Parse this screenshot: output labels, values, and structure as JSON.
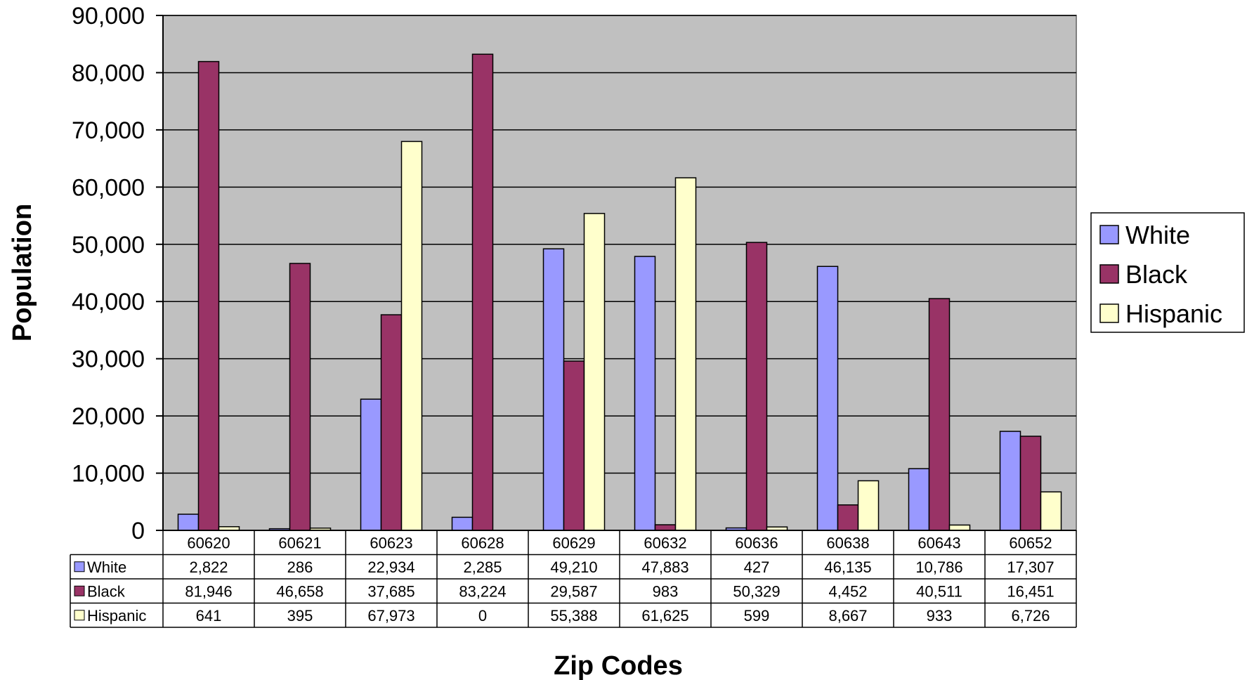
{
  "chart_data": {
    "type": "bar",
    "xlabel": "Zip Codes",
    "ylabel": "Population",
    "ylim": [
      0,
      90000
    ],
    "yticks": [
      "0",
      "10,000",
      "20,000",
      "30,000",
      "40,000",
      "50,000",
      "60,000",
      "70,000",
      "80,000",
      "90,000"
    ],
    "categories": [
      "60620",
      "60621",
      "60623",
      "60628",
      "60629",
      "60632",
      "60636",
      "60638",
      "60643",
      "60652"
    ],
    "series": [
      {
        "name": "White",
        "color": "#9999ff",
        "values": [
          2822,
          286,
          22934,
          2285,
          49210,
          47883,
          427,
          46135,
          10786,
          17307
        ],
        "labels": [
          "2,822",
          "286",
          "22,934",
          "2,285",
          "49,210",
          "47,883",
          "427",
          "46,135",
          "10,786",
          "17,307"
        ]
      },
      {
        "name": "Black",
        "color": "#993366",
        "values": [
          81946,
          46658,
          37685,
          83224,
          29587,
          983,
          50329,
          4452,
          40511,
          16451
        ],
        "labels": [
          "81,946",
          "46,658",
          "37,685",
          "83,224",
          "29,587",
          "983",
          "50,329",
          "4,452",
          "40,511",
          "16,451"
        ]
      },
      {
        "name": "Hispanic",
        "color": "#ffffcc",
        "values": [
          641,
          395,
          67973,
          0,
          55388,
          61625,
          599,
          8667,
          933,
          6726
        ],
        "labels": [
          "641",
          "395",
          "67,973",
          "0",
          "55,388",
          "61,625",
          "599",
          "8,667",
          "933",
          "6,726"
        ]
      }
    ],
    "plot_background": "#c0c0c0",
    "grid": true,
    "legend_position": "right",
    "data_table": true
  }
}
